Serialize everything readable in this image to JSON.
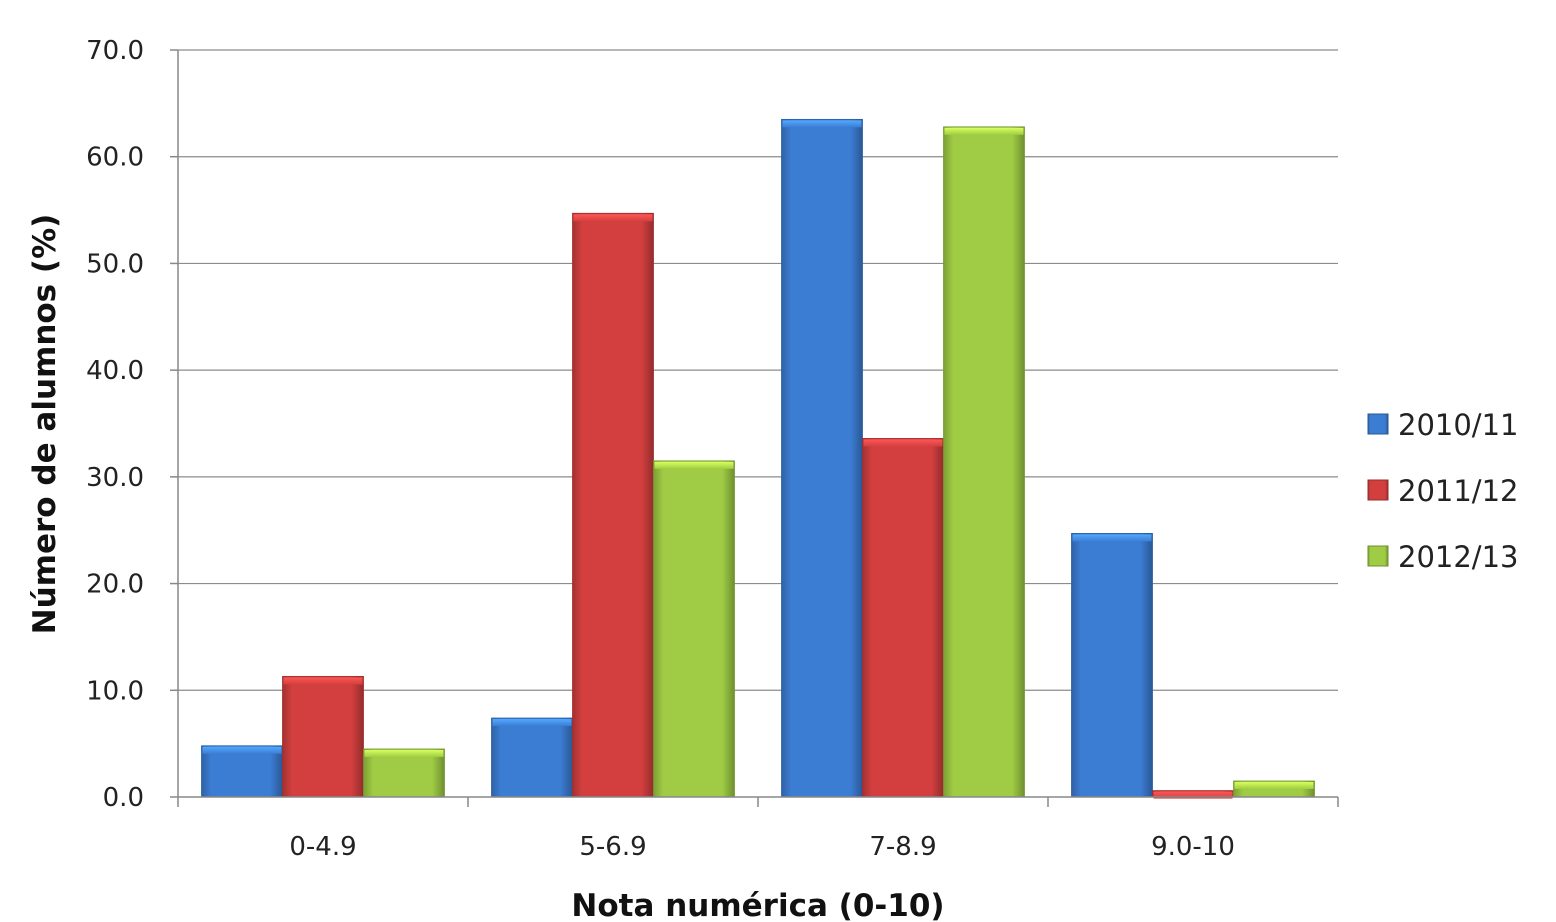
{
  "chart_data": {
    "type": "bar",
    "title": "",
    "xlabel": "Nota numérica (0-10)",
    "ylabel": "Número de alumnos (%)",
    "categories": [
      "0-4.9",
      "5-6.9",
      "7-8.9",
      "9.0-10"
    ],
    "ylim": [
      0,
      70
    ],
    "yticks": [
      "0.0",
      "10.0",
      "20.0",
      "30.0",
      "40.0",
      "50.0",
      "60.0",
      "70.0"
    ],
    "grid": true,
    "legend_position": "right",
    "series": [
      {
        "name": "2010/11",
        "color": "#3c7dd4",
        "values": [
          4.8,
          7.4,
          63.5,
          24.7
        ]
      },
      {
        "name": "2011/12",
        "color": "#d33f3f",
        "values": [
          11.3,
          54.7,
          33.6,
          0.6
        ]
      },
      {
        "name": "2012/13",
        "color": "#9fcc44",
        "values": [
          4.5,
          31.5,
          62.8,
          1.5
        ]
      }
    ]
  }
}
